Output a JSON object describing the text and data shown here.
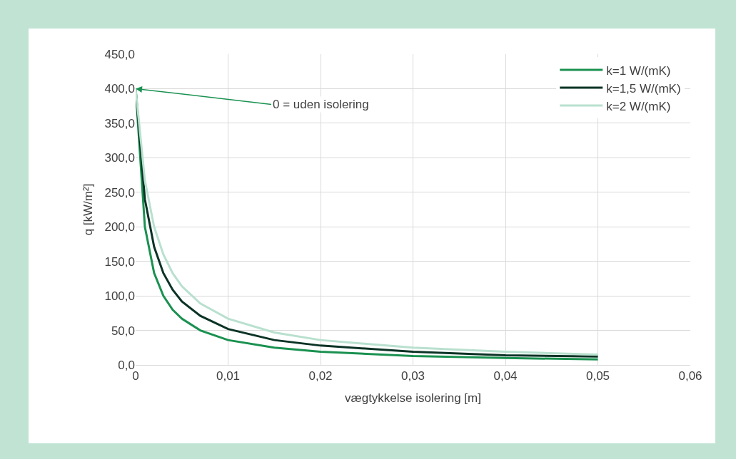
{
  "chart_data": {
    "type": "line",
    "xlabel": "vægtykkelse isolering [m]",
    "ylabel": "q [kW/m²]",
    "x": [
      0,
      0.001,
      0.002,
      0.003,
      0.004,
      0.005,
      0.007,
      0.01,
      0.015,
      0.02,
      0.03,
      0.04,
      0.05
    ],
    "series": [
      {
        "name": "k=1 W/(mK)",
        "color": "#1a9150",
        "values": [
          400,
          200,
          133,
          100,
          80,
          67,
          50,
          36,
          25,
          19,
          13,
          10,
          8
        ]
      },
      {
        "name": "k=1,5 W/(mK)",
        "color": "#0b3325",
        "values": [
          400,
          240,
          171,
          133,
          109,
          92,
          71,
          52,
          36,
          28,
          19,
          14,
          12
        ]
      },
      {
        "name": "k=2 W/(mK)",
        "color": "#b9e0cf",
        "values": [
          400,
          267,
          200,
          160,
          133,
          114,
          89,
          67,
          47,
          36,
          25,
          19,
          15
        ]
      }
    ],
    "xlim": [
      0,
      0.06
    ],
    "xticks": [
      0,
      {
        "value": 0.01,
        "label": "0,01"
      },
      {
        "value": 0.02,
        "label": "0,02"
      },
      {
        "value": 0.03,
        "label": "0,03"
      },
      {
        "value": 0.04,
        "label": "0,04"
      },
      {
        "value": 0.05,
        "label": "0,05"
      },
      {
        "value": 0.06,
        "label": "0,06"
      }
    ],
    "ylim": [
      0,
      450
    ],
    "yticks": [
      {
        "value": 0,
        "label": "0,0"
      },
      {
        "value": 50,
        "label": "50,0"
      },
      {
        "value": 100,
        "label": "100,0"
      },
      {
        "value": 150,
        "label": "150,0"
      },
      {
        "value": 200,
        "label": "200,0"
      },
      {
        "value": 250,
        "label": "250,0"
      },
      {
        "value": 300,
        "label": "300,0"
      },
      {
        "value": 350,
        "label": "350,0"
      },
      {
        "value": 400,
        "label": "400,0"
      },
      {
        "value": 450,
        "label": "450,0"
      }
    ],
    "annotations": [
      {
        "text": "0 = uden isolering",
        "x": 0,
        "y": 400
      }
    ],
    "grid": true,
    "legend": "top right",
    "marker": "none",
    "line_style": "solid"
  }
}
